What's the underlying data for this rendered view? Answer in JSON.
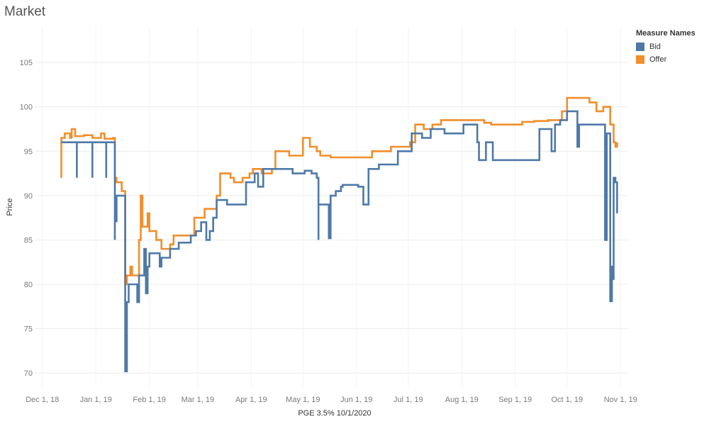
{
  "title": "Market",
  "legend": {
    "title": "Measure Names",
    "items": [
      {
        "label": "Bid",
        "color": "#4e79a7"
      },
      {
        "label": "Offer",
        "color": "#f28e2b"
      }
    ]
  },
  "chart_data": {
    "type": "line",
    "title": "Market",
    "xlabel": "PGE 3.5% 10/1/2020",
    "ylabel": "Price",
    "ylim": [
      68.5,
      109
    ],
    "xlim": [
      "2018-11-27",
      "2019-11-05"
    ],
    "y_ticks": [
      70,
      75,
      80,
      85,
      90,
      95,
      100,
      105
    ],
    "x_ticks": [
      {
        "label": "Dec 1, 18",
        "date": "2018-12-01"
      },
      {
        "label": "Jan 1, 19",
        "date": "2019-01-01"
      },
      {
        "label": "Feb 1, 19",
        "date": "2019-02-01"
      },
      {
        "label": "Mar 1, 19",
        "date": "2019-03-01"
      },
      {
        "label": "Apr 1, 19",
        "date": "2019-04-01"
      },
      {
        "label": "May 1, 19",
        "date": "2019-05-01"
      },
      {
        "label": "Jun 1, 19",
        "date": "2019-06-01"
      },
      {
        "label": "Jul 1, 19",
        "date": "2019-07-01"
      },
      {
        "label": "Aug 1, 19",
        "date": "2019-08-01"
      },
      {
        "label": "Sep 1, 19",
        "date": "2019-09-01"
      },
      {
        "label": "Oct 1, 19",
        "date": "2019-10-01"
      },
      {
        "label": "Nov 1, 19",
        "date": "2019-11-01"
      }
    ],
    "grid": true,
    "legend_position": "top-right",
    "series": [
      {
        "name": "Bid",
        "color": "#4e79a7",
        "points": [
          [
            "2018-12-12",
            96.0
          ],
          [
            "2018-12-20",
            96.0
          ],
          [
            "2018-12-21",
            92.0
          ],
          [
            "2018-12-21",
            96.0
          ],
          [
            "2018-12-29",
            96.0
          ],
          [
            "2018-12-30",
            92.0
          ],
          [
            "2018-12-30",
            96.0
          ],
          [
            "2019-01-06",
            96.0
          ],
          [
            "2019-01-07",
            92.0
          ],
          [
            "2019-01-07",
            96.0
          ],
          [
            "2019-01-11",
            96.0
          ],
          [
            "2019-01-12",
            85.0
          ],
          [
            "2019-01-12",
            90.0
          ],
          [
            "2019-01-13",
            87.0
          ],
          [
            "2019-01-13",
            90.0
          ],
          [
            "2019-01-18",
            90.0
          ],
          [
            "2019-01-18",
            70.2
          ],
          [
            "2019-01-19",
            78.0
          ],
          [
            "2019-01-20",
            80.0
          ],
          [
            "2019-01-25",
            80.0
          ],
          [
            "2019-01-25",
            78.0
          ],
          [
            "2019-01-26",
            81.0
          ],
          [
            "2019-01-28",
            81.0
          ],
          [
            "2019-01-29",
            84.0
          ],
          [
            "2019-01-30",
            79.0
          ],
          [
            "2019-01-31",
            82.0
          ],
          [
            "2019-02-01",
            83.5
          ],
          [
            "2019-02-06",
            83.5
          ],
          [
            "2019-02-07",
            82.0
          ],
          [
            "2019-02-08",
            83.0
          ],
          [
            "2019-02-12",
            83.0
          ],
          [
            "2019-02-13",
            84.0
          ],
          [
            "2019-02-17",
            84.0
          ],
          [
            "2019-02-18",
            84.7
          ],
          [
            "2019-02-24",
            84.7
          ],
          [
            "2019-02-25",
            85.5
          ],
          [
            "2019-02-28",
            86.0
          ],
          [
            "2019-03-03",
            87.0
          ],
          [
            "2019-03-06",
            85.0
          ],
          [
            "2019-03-08",
            86.0
          ],
          [
            "2019-03-10",
            87.5
          ],
          [
            "2019-03-12",
            89.5
          ],
          [
            "2019-03-18",
            89.0
          ],
          [
            "2019-03-20",
            89.0
          ],
          [
            "2019-03-22",
            89.0
          ],
          [
            "2019-03-29",
            89.5
          ],
          [
            "2019-03-29",
            91.5
          ],
          [
            "2019-04-03",
            92.5
          ],
          [
            "2019-04-05",
            91.0
          ],
          [
            "2019-04-08",
            93.0
          ],
          [
            "2019-04-13",
            93.0
          ],
          [
            "2019-04-17",
            93.0
          ],
          [
            "2019-04-23",
            93.0
          ],
          [
            "2019-04-25",
            92.5
          ],
          [
            "2019-04-29",
            92.5
          ],
          [
            "2019-05-02",
            92.8
          ],
          [
            "2019-05-05",
            92.8
          ],
          [
            "2019-05-06",
            92.5
          ],
          [
            "2019-05-09",
            92.0
          ],
          [
            "2019-05-10",
            85.0
          ],
          [
            "2019-05-10",
            89.0
          ],
          [
            "2019-05-14",
            89.0
          ],
          [
            "2019-05-16",
            85.2
          ],
          [
            "2019-05-17",
            90.0
          ],
          [
            "2019-05-20",
            90.5
          ],
          [
            "2019-05-23",
            91.0
          ],
          [
            "2019-05-24",
            91.2
          ],
          [
            "2019-06-01",
            91.2
          ],
          [
            "2019-06-02",
            91.0
          ],
          [
            "2019-06-05",
            89.0
          ],
          [
            "2019-06-07",
            89.0
          ],
          [
            "2019-06-08",
            93.0
          ],
          [
            "2019-06-13",
            93.0
          ],
          [
            "2019-06-14",
            93.5
          ],
          [
            "2019-06-24",
            93.5
          ],
          [
            "2019-06-25",
            95.0
          ],
          [
            "2019-07-02",
            95.0
          ],
          [
            "2019-07-03",
            97.0
          ],
          [
            "2019-07-08",
            97.0
          ],
          [
            "2019-07-09",
            96.5
          ],
          [
            "2019-07-13",
            96.5
          ],
          [
            "2019-07-14",
            97.5
          ],
          [
            "2019-07-21",
            97.5
          ],
          [
            "2019-07-22",
            97.0
          ],
          [
            "2019-08-01",
            97.0
          ],
          [
            "2019-08-02",
            98.0
          ],
          [
            "2019-08-09",
            98.0
          ],
          [
            "2019-08-10",
            96.0
          ],
          [
            "2019-08-11",
            94.0
          ],
          [
            "2019-08-15",
            96.0
          ],
          [
            "2019-08-18",
            96.0
          ],
          [
            "2019-08-19",
            94.0
          ],
          [
            "2019-08-28",
            94.0
          ],
          [
            "2019-09-01",
            94.0
          ],
          [
            "2019-09-08",
            94.0
          ],
          [
            "2019-09-10",
            94.0
          ],
          [
            "2019-09-14",
            94.0
          ],
          [
            "2019-09-15",
            97.5
          ],
          [
            "2019-09-20",
            97.5
          ],
          [
            "2019-09-22",
            95.0
          ],
          [
            "2019-09-24",
            98.0
          ],
          [
            "2019-09-27",
            98.5
          ],
          [
            "2019-10-01",
            99.5
          ],
          [
            "2019-10-06",
            99.5
          ],
          [
            "2019-10-07",
            95.5
          ],
          [
            "2019-10-08",
            98.0
          ],
          [
            "2019-10-15",
            98.0
          ],
          [
            "2019-10-17",
            98.0
          ],
          [
            "2019-10-22",
            98.0
          ],
          [
            "2019-10-23",
            85.0
          ],
          [
            "2019-10-24",
            97.0
          ],
          [
            "2019-10-26",
            78.1
          ],
          [
            "2019-10-27",
            82.0
          ],
          [
            "2019-10-28",
            80.5
          ],
          [
            "2019-10-28",
            92.0
          ],
          [
            "2019-10-29",
            91.5
          ],
          [
            "2019-10-30",
            88.0
          ]
        ]
      },
      {
        "name": "Offer",
        "color": "#f28e2b",
        "points": [
          [
            "2018-12-12",
            92.0
          ],
          [
            "2018-12-12",
            96.5
          ],
          [
            "2018-12-14",
            97.0
          ],
          [
            "2018-12-17",
            96.5
          ],
          [
            "2018-12-18",
            97.5
          ],
          [
            "2018-12-20",
            96.7
          ],
          [
            "2018-12-25",
            96.8
          ],
          [
            "2018-12-30",
            96.5
          ],
          [
            "2019-01-04",
            97.0
          ],
          [
            "2019-01-06",
            96.4
          ],
          [
            "2019-01-11",
            96.5
          ],
          [
            "2019-01-12",
            92.0
          ],
          [
            "2019-01-13",
            91.5
          ],
          [
            "2019-01-16",
            90.5
          ],
          [
            "2019-01-18",
            90.5
          ],
          [
            "2019-01-18",
            80.0
          ],
          [
            "2019-01-19",
            81.0
          ],
          [
            "2019-01-21",
            82.0
          ],
          [
            "2019-01-22",
            81.0
          ],
          [
            "2019-01-26",
            81.0
          ],
          [
            "2019-01-26",
            85.0
          ],
          [
            "2019-01-27",
            90.0
          ],
          [
            "2019-01-28",
            86.5
          ],
          [
            "2019-01-31",
            88.0
          ],
          [
            "2019-02-01",
            86.0
          ],
          [
            "2019-02-05",
            85.0
          ],
          [
            "2019-02-08",
            84.0
          ],
          [
            "2019-02-13",
            84.5
          ],
          [
            "2019-02-15",
            85.5
          ],
          [
            "2019-02-24",
            85.5
          ],
          [
            "2019-02-27",
            87.5
          ],
          [
            "2019-03-04",
            87.5
          ],
          [
            "2019-03-05",
            88.5
          ],
          [
            "2019-03-12",
            90.0
          ],
          [
            "2019-03-14",
            92.5
          ],
          [
            "2019-03-20",
            92.0
          ],
          [
            "2019-03-22",
            91.5
          ],
          [
            "2019-03-27",
            92.0
          ],
          [
            "2019-03-31",
            92.5
          ],
          [
            "2019-04-02",
            93.0
          ],
          [
            "2019-04-07",
            92.5
          ],
          [
            "2019-04-13",
            93.0
          ],
          [
            "2019-04-15",
            95.0
          ],
          [
            "2019-04-23",
            94.5
          ],
          [
            "2019-04-30",
            94.5
          ],
          [
            "2019-05-01",
            96.5
          ],
          [
            "2019-05-05",
            95.5
          ],
          [
            "2019-05-09",
            95.0
          ],
          [
            "2019-05-11",
            94.5
          ],
          [
            "2019-05-17",
            94.3
          ],
          [
            "2019-05-24",
            94.3
          ],
          [
            "2019-05-28",
            94.3
          ],
          [
            "2019-06-01",
            94.3
          ],
          [
            "2019-06-07",
            94.3
          ],
          [
            "2019-06-10",
            95.0
          ],
          [
            "2019-06-13",
            95.0
          ],
          [
            "2019-06-18",
            95.0
          ],
          [
            "2019-06-21",
            95.5
          ],
          [
            "2019-06-27",
            95.5
          ],
          [
            "2019-07-02",
            96.0
          ],
          [
            "2019-07-05",
            98.0
          ],
          [
            "2019-07-10",
            97.5
          ],
          [
            "2019-07-15",
            98.0
          ],
          [
            "2019-07-20",
            98.5
          ],
          [
            "2019-07-25",
            98.5
          ],
          [
            "2019-07-31",
            98.5
          ],
          [
            "2019-08-05",
            98.5
          ],
          [
            "2019-08-10",
            98.5
          ],
          [
            "2019-08-14",
            98.2
          ],
          [
            "2019-08-18",
            98.0
          ],
          [
            "2019-08-25",
            98.0
          ],
          [
            "2019-08-31",
            98.0
          ],
          [
            "2019-09-05",
            98.3
          ],
          [
            "2019-09-12",
            98.4
          ],
          [
            "2019-09-20",
            98.5
          ],
          [
            "2019-09-28",
            99.5
          ],
          [
            "2019-10-01",
            101.0
          ],
          [
            "2019-10-08",
            101.0
          ],
          [
            "2019-10-14",
            100.5
          ],
          [
            "2019-10-16",
            100.5
          ],
          [
            "2019-10-18",
            99.5
          ],
          [
            "2019-10-22",
            100.0
          ],
          [
            "2019-10-26",
            98.0
          ],
          [
            "2019-10-28",
            96.0
          ],
          [
            "2019-10-29",
            95.5
          ],
          [
            "2019-10-30",
            96.0
          ]
        ]
      }
    ]
  }
}
